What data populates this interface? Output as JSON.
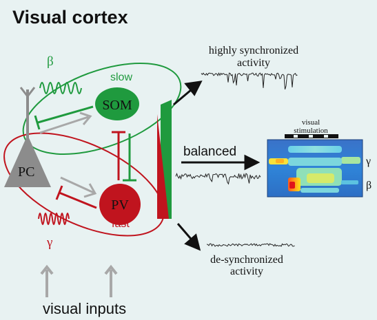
{
  "title": "Visual cortex",
  "cells": {
    "pc": "PC",
    "som": "SOM",
    "pv": "PV"
  },
  "rhythms": {
    "beta_symbol": "β",
    "gamma_symbol": "γ",
    "slow_label": "slow",
    "fast_label": "fast"
  },
  "outputs": {
    "top_line1": "highly synchronized",
    "top_line2": "activity",
    "middle": "balanced",
    "bottom_line1": "de-synchronized",
    "bottom_line2": "activity"
  },
  "spectrogram": {
    "label_line1": "visual",
    "label_line2": "stimulation",
    "gamma_band": "γ",
    "beta_band": "β"
  },
  "inputs_label": "visual inputs",
  "colors": {
    "background": "#e8f2f2",
    "som_green": "#1f9a3e",
    "pv_red": "#c0141e",
    "pc_gray": "#8c8c8c",
    "arrow_gray": "#a8a8a8"
  }
}
